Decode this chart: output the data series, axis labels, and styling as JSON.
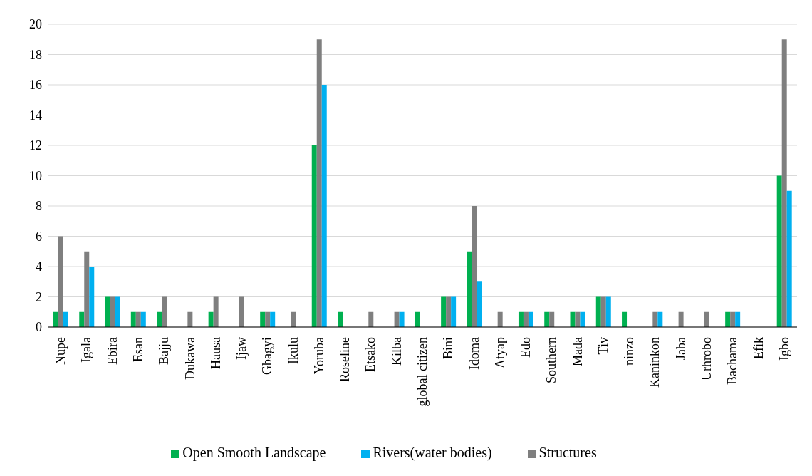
{
  "chart_data": {
    "type": "bar",
    "categories": [
      "Nupe",
      "Igala",
      "Ebira",
      "Esan",
      "Bajju",
      "Dukawa",
      "Hausa",
      "Ijaw",
      "Gbagyi",
      "Ikulu",
      "Yoruba",
      "Roseline",
      "Etsako",
      "Kilba",
      "global citizen",
      "Bini",
      "Idoma",
      "Atyap",
      "Edo",
      "Southern",
      "Mada",
      "Tiv",
      "ninzo",
      "Kaninkon",
      "Jaba",
      "Urhrobo",
      "Bachama",
      "Efik",
      "Igbo"
    ],
    "series": [
      {
        "name": "Open Smooth Landscape",
        "color": "#00b050",
        "values": [
          1,
          1,
          2,
          1,
          1,
          0,
          1,
          0,
          1,
          0,
          12,
          1,
          0,
          0,
          1,
          2,
          5,
          0,
          1,
          1,
          1,
          2,
          1,
          0,
          0,
          0,
          1,
          0,
          10
        ]
      },
      {
        "name": "Structures",
        "color": "#7f7f7f",
        "values": [
          6,
          5,
          2,
          1,
          2,
          1,
          2,
          2,
          1,
          1,
          19,
          0,
          1,
          1,
          0,
          2,
          8,
          1,
          1,
          1,
          1,
          2,
          0,
          1,
          1,
          1,
          1,
          0,
          19
        ]
      },
      {
        "name": "Rivers(water bodies)",
        "color": "#00b0f0",
        "values": [
          1,
          4,
          2,
          1,
          0,
          0,
          0,
          0,
          1,
          0,
          16,
          0,
          0,
          1,
          0,
          2,
          3,
          0,
          1,
          0,
          1,
          2,
          0,
          1,
          0,
          0,
          1,
          0,
          9
        ]
      }
    ],
    "ylim": [
      0,
      20
    ],
    "yticks": [
      0,
      2,
      4,
      6,
      8,
      10,
      12,
      14,
      16,
      18,
      20
    ],
    "grid": "y",
    "legend": "bottom"
  }
}
